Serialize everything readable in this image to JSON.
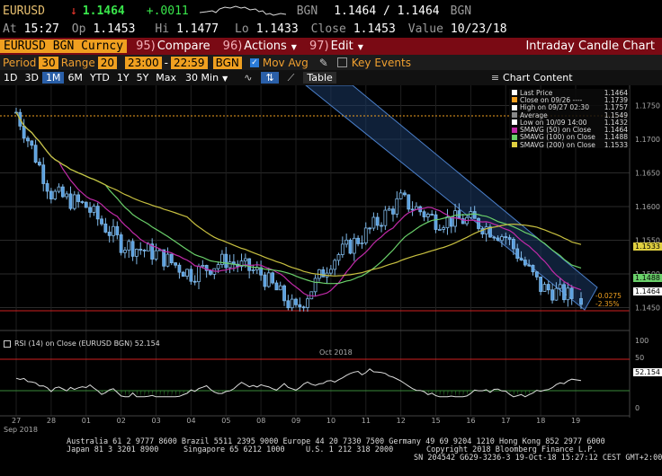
{
  "quote": {
    "ticker": "EURUSD",
    "arrow": "↓",
    "last": "1.1464",
    "change": "+.0011",
    "source": "BGN",
    "bid_ask": "1.1464 / 1.1464",
    "source2": "BGN",
    "at_label": "At",
    "time": "15:27",
    "op_label": "Op",
    "open": "1.1453",
    "hi_label": "Hi",
    "high": "1.1477",
    "lo_label": "Lo",
    "low": "1.1433",
    "close_label": "Close",
    "close": "1.1453",
    "value_label": "Value",
    "value_date": "10/23/18"
  },
  "toolbar": {
    "security": "EURUSD BGN Curncy",
    "compare_num": "95)",
    "compare": "Compare",
    "actions_num": "96)",
    "actions": "Actions",
    "edit_num": "97)",
    "edit": "Edit",
    "chart_title": "Intraday Candle Chart"
  },
  "settings": {
    "period_label": "Period",
    "period": "30",
    "range_label": "Range",
    "range": "20",
    "start": "23:00",
    "dash": "-",
    "end": "22:59",
    "source": "BGN",
    "mov_avg": "Mov Avg",
    "key_events": "Key Events"
  },
  "ranges": {
    "items": [
      "1D",
      "3D",
      "1M",
      "6M",
      "YTD",
      "1Y",
      "5Y",
      "Max"
    ],
    "active": "1M",
    "interval": "30 Min",
    "table": "Table",
    "chart_content": "Chart Content"
  },
  "legend": [
    {
      "label": "Last Price",
      "value": "1.1464",
      "color": "#ffffff"
    },
    {
      "label": "Close on 09/26 ----",
      "value": "1.1739",
      "color": "#f0a020"
    },
    {
      "label": "High on 09/27 02:30",
      "value": "1.1757",
      "color": "#ffffff"
    },
    {
      "label": "Average",
      "value": "1.1549",
      "color": "#888888"
    },
    {
      "label": "Low on 10/09 14:00",
      "value": "1.1432",
      "color": "#ffffff"
    },
    {
      "label": "SMAVG (50)  on Close",
      "value": "1.1464",
      "color": "#c02aa8"
    },
    {
      "label": "SMAVG (100)  on Close",
      "value": "1.1488",
      "color": "#6ad06a"
    },
    {
      "label": "SMAVG (200)  on Close",
      "value": "1.1533",
      "color": "#e0d040"
    }
  ],
  "price_axis": [
    "1.1750",
    "1.1700",
    "1.1650",
    "1.1600",
    "1.1550",
    "1.1500",
    "1.1450"
  ],
  "price_tags": {
    "sma200": "1.1533",
    "sma100": "1.1488",
    "last": "1.1464"
  },
  "annotations": {
    "change_abs": "-0.0275",
    "change_pct": "-2.35%"
  },
  "rsi": {
    "label": "RSI (14)  on Close (EURUSD BGN) 52.154",
    "value": "52.154",
    "axis": [
      "100",
      "50",
      "0"
    ]
  },
  "date_axis": {
    "days": [
      "27",
      "28",
      "01",
      "02",
      "03",
      "04",
      "05",
      "08",
      "09",
      "10",
      "11",
      "12",
      "15",
      "16",
      "17",
      "18",
      "19"
    ],
    "months": [
      "Sep 2018",
      "Oct 2018"
    ]
  },
  "footer": {
    "line1": "Australia 61 2 9777 8600 Brazil 5511 2395 9000 Europe 44 20 7330 7500 Germany 49 69 9204 1210 Hong Kong 852 2977 6000",
    "line2a": "Japan 81 3 3201 8900",
    "line2b": "Singapore 65 6212 1000",
    "line2c": "U.S. 1 212 318 2000",
    "line2d": "Copyright 2018 Bloomberg Finance L.P.",
    "line3": "SN 204542 G629-3236-3 19-Oct-18 15:27:12 CEST GMT+2:00"
  },
  "chart_data": {
    "type": "candlestick",
    "x": [
      "Sep 27",
      "Sep 28",
      "Oct 01",
      "Oct 02",
      "Oct 03",
      "Oct 04",
      "Oct 05",
      "Oct 08",
      "Oct 09",
      "Oct 10",
      "Oct 11",
      "Oct 12",
      "Oct 15",
      "Oct 16",
      "Oct 17",
      "Oct 18",
      "Oct 19"
    ],
    "price": [
      1.174,
      1.162,
      1.16,
      1.1545,
      1.153,
      1.15,
      1.152,
      1.15,
      1.1445,
      1.152,
      1.156,
      1.161,
      1.158,
      1.158,
      1.1555,
      1.148,
      1.1464
    ],
    "sma50_end": 1.1464,
    "sma100_end": 1.1488,
    "sma200_end": 1.1533,
    "high": 1.1757,
    "low": 1.1432,
    "average": 1.1549,
    "close_ref": 1.1739,
    "ylim": [
      1.142,
      1.178
    ],
    "rsi_last": 52.154
  }
}
